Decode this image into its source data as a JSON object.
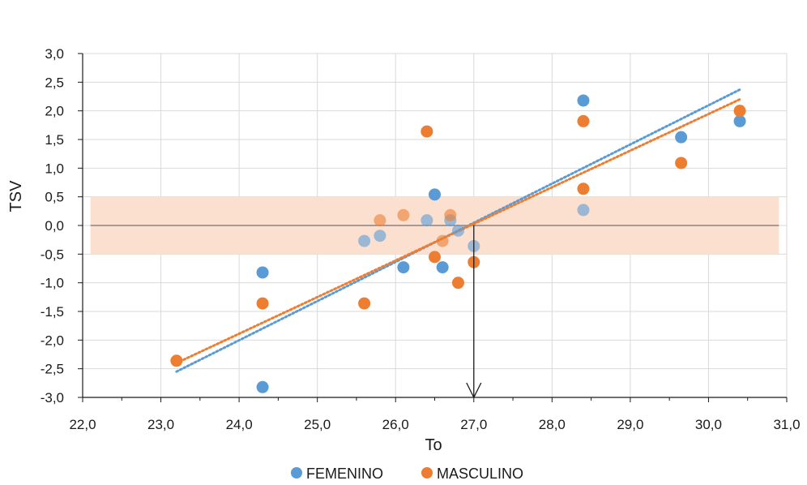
{
  "chart_data": {
    "type": "scatter",
    "xlabel": "To",
    "ylabel": "TSV",
    "xlim": [
      22.0,
      31.0
    ],
    "ylim": [
      -3.0,
      3.0
    ],
    "x_ticks": [
      "22,0",
      "23,0",
      "24,0",
      "25,0",
      "26,0",
      "27,0",
      "28,0",
      "29,0",
      "30,0",
      "31,0"
    ],
    "y_ticks": [
      "-3,0",
      "-2,5",
      "-2,0",
      "-1,5",
      "-1,0",
      "-0,5",
      "0,0",
      "0,5",
      "1,0",
      "1,5",
      "2,0",
      "2,5",
      "3,0"
    ],
    "grid": true,
    "legend_position": "bottom",
    "comfort_band": {
      "y_range": [
        -0.5,
        0.5
      ],
      "x_range": [
        22.1,
        30.9
      ],
      "color": "#fbe0d0"
    },
    "zero_line": {
      "x_range": [
        22.1,
        30.9
      ],
      "y": 0.0
    },
    "arrow": {
      "x": 27.0,
      "y_from": 0.0,
      "y_to": -3.0
    },
    "series": [
      {
        "name": "FEMENINO",
        "color": "#5b9bd5",
        "points": [
          {
            "x": 24.3,
            "y": -0.82
          },
          {
            "x": 24.3,
            "y": -2.82
          },
          {
            "x": 25.6,
            "y": -0.27
          },
          {
            "x": 25.8,
            "y": -0.18
          },
          {
            "x": 26.1,
            "y": -0.73
          },
          {
            "x": 26.4,
            "y": 0.09
          },
          {
            "x": 26.5,
            "y": 0.54
          },
          {
            "x": 26.6,
            "y": -0.73
          },
          {
            "x": 26.7,
            "y": 0.09
          },
          {
            "x": 26.8,
            "y": -0.09
          },
          {
            "x": 27.0,
            "y": -0.36
          },
          {
            "x": 28.4,
            "y": 2.18
          },
          {
            "x": 28.4,
            "y": 0.27
          },
          {
            "x": 29.65,
            "y": 1.54
          },
          {
            "x": 30.4,
            "y": 1.82
          }
        ],
        "trendline": {
          "x": [
            23.2,
            30.4
          ],
          "y": [
            -2.55,
            2.37
          ]
        }
      },
      {
        "name": "MASCULINO",
        "color": "#ed7d31",
        "points": [
          {
            "x": 23.2,
            "y": -2.36
          },
          {
            "x": 24.3,
            "y": -1.36
          },
          {
            "x": 25.6,
            "y": -1.36
          },
          {
            "x": 25.8,
            "y": 0.09
          },
          {
            "x": 26.1,
            "y": 0.18
          },
          {
            "x": 26.4,
            "y": 1.64
          },
          {
            "x": 26.5,
            "y": -0.55
          },
          {
            "x": 26.6,
            "y": -0.27
          },
          {
            "x": 26.7,
            "y": 0.18
          },
          {
            "x": 26.8,
            "y": -1.0
          },
          {
            "x": 27.0,
            "y": -0.64
          },
          {
            "x": 28.4,
            "y": 1.82
          },
          {
            "x": 28.4,
            "y": 0.64
          },
          {
            "x": 29.65,
            "y": 1.09
          },
          {
            "x": 30.4,
            "y": 2.0
          }
        ],
        "trendline": {
          "x": [
            23.2,
            30.4
          ],
          "y": [
            -2.4,
            2.2
          ]
        }
      }
    ]
  }
}
